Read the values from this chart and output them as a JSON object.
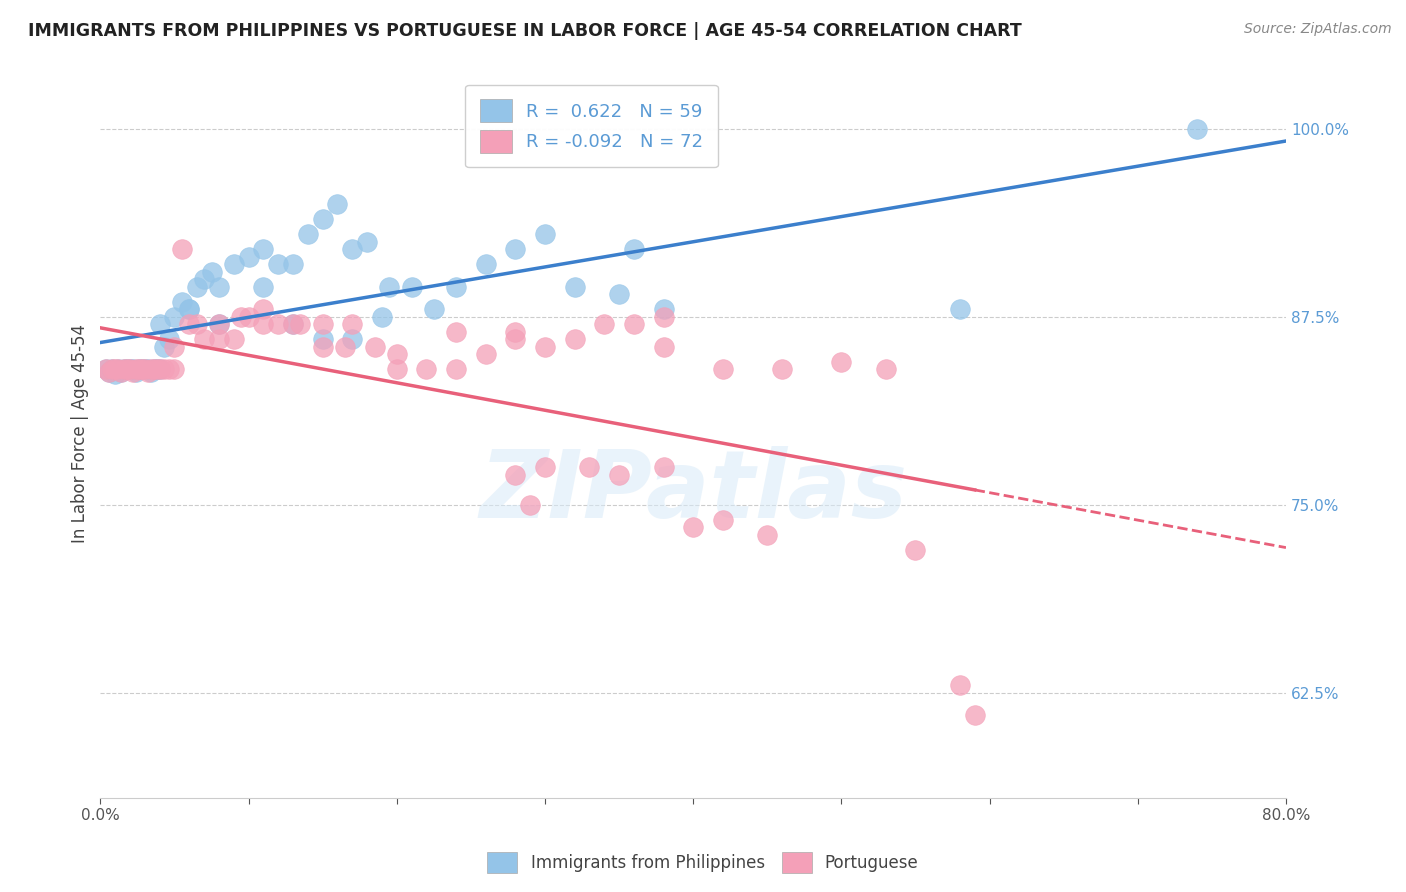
{
  "title": "IMMIGRANTS FROM PHILIPPINES VS PORTUGUESE IN LABOR FORCE | AGE 45-54 CORRELATION CHART",
  "source": "Source: ZipAtlas.com",
  "ylabel": "In Labor Force | Age 45-54",
  "xlim": [
    0.0,
    0.8
  ],
  "ylim": [
    0.555,
    1.04
  ],
  "yticks": [
    0.625,
    0.75,
    0.875,
    1.0
  ],
  "ytick_labels": [
    "62.5%",
    "75.0%",
    "87.5%",
    "100.0%"
  ],
  "xticks": [
    0.0,
    0.1,
    0.2,
    0.3,
    0.4,
    0.5,
    0.6,
    0.7,
    0.8
  ],
  "xtick_labels": [
    "0.0%",
    "",
    "",
    "",
    "",
    "",
    "",
    "",
    "80.0%"
  ],
  "philippines_R": 0.622,
  "philippines_N": 59,
  "portuguese_R": -0.092,
  "portuguese_N": 72,
  "philippines_color": "#94C4E8",
  "portuguese_color": "#F4A0B8",
  "philippines_line_color": "#3B7FCC",
  "portuguese_line_color": "#E8607A",
  "tick_color_right": "#5B9BD5",
  "watermark": "ZIPatlas",
  "philippines_x": [
    0.004,
    0.006,
    0.008,
    0.01,
    0.012,
    0.014,
    0.016,
    0.018,
    0.02,
    0.022,
    0.024,
    0.026,
    0.028,
    0.03,
    0.032,
    0.034,
    0.036,
    0.038,
    0.04,
    0.043,
    0.046,
    0.05,
    0.055,
    0.06,
    0.065,
    0.07,
    0.075,
    0.08,
    0.09,
    0.1,
    0.11,
    0.12,
    0.13,
    0.14,
    0.15,
    0.16,
    0.17,
    0.18,
    0.195,
    0.21,
    0.225,
    0.24,
    0.26,
    0.28,
    0.3,
    0.32,
    0.35,
    0.38,
    0.11,
    0.13,
    0.15,
    0.17,
    0.19,
    0.08,
    0.06,
    0.04,
    0.36,
    0.58,
    0.74
  ],
  "philippines_y": [
    0.84,
    0.838,
    0.84,
    0.837,
    0.84,
    0.838,
    0.84,
    0.84,
    0.84,
    0.84,
    0.838,
    0.84,
    0.84,
    0.84,
    0.84,
    0.838,
    0.84,
    0.84,
    0.84,
    0.855,
    0.86,
    0.875,
    0.885,
    0.88,
    0.895,
    0.9,
    0.905,
    0.895,
    0.91,
    0.915,
    0.92,
    0.91,
    0.91,
    0.93,
    0.94,
    0.95,
    0.92,
    0.925,
    0.895,
    0.895,
    0.88,
    0.895,
    0.91,
    0.92,
    0.93,
    0.895,
    0.89,
    0.88,
    0.895,
    0.87,
    0.86,
    0.86,
    0.875,
    0.87,
    0.88,
    0.87,
    0.92,
    0.88,
    1.0
  ],
  "portuguese_x": [
    0.004,
    0.006,
    0.008,
    0.01,
    0.012,
    0.014,
    0.016,
    0.018,
    0.02,
    0.022,
    0.024,
    0.026,
    0.028,
    0.03,
    0.032,
    0.034,
    0.036,
    0.038,
    0.04,
    0.043,
    0.046,
    0.05,
    0.055,
    0.06,
    0.07,
    0.08,
    0.09,
    0.1,
    0.11,
    0.12,
    0.135,
    0.15,
    0.165,
    0.185,
    0.2,
    0.22,
    0.24,
    0.26,
    0.28,
    0.3,
    0.32,
    0.34,
    0.36,
    0.38,
    0.05,
    0.065,
    0.08,
    0.095,
    0.11,
    0.13,
    0.15,
    0.17,
    0.2,
    0.24,
    0.28,
    0.38,
    0.42,
    0.46,
    0.5,
    0.53,
    0.28,
    0.3,
    0.33,
    0.29,
    0.35,
    0.38,
    0.4,
    0.42,
    0.45,
    0.55,
    0.58,
    0.59
  ],
  "portuguese_y": [
    0.84,
    0.838,
    0.84,
    0.84,
    0.84,
    0.838,
    0.84,
    0.84,
    0.84,
    0.838,
    0.84,
    0.84,
    0.84,
    0.84,
    0.838,
    0.84,
    0.84,
    0.84,
    0.84,
    0.84,
    0.84,
    0.84,
    0.92,
    0.87,
    0.86,
    0.86,
    0.86,
    0.875,
    0.88,
    0.87,
    0.87,
    0.855,
    0.855,
    0.855,
    0.84,
    0.84,
    0.84,
    0.85,
    0.86,
    0.855,
    0.86,
    0.87,
    0.87,
    0.875,
    0.855,
    0.87,
    0.87,
    0.875,
    0.87,
    0.87,
    0.87,
    0.87,
    0.85,
    0.865,
    0.865,
    0.855,
    0.84,
    0.84,
    0.845,
    0.84,
    0.77,
    0.775,
    0.775,
    0.75,
    0.77,
    0.775,
    0.735,
    0.74,
    0.73,
    0.72,
    0.63,
    0.61
  ]
}
